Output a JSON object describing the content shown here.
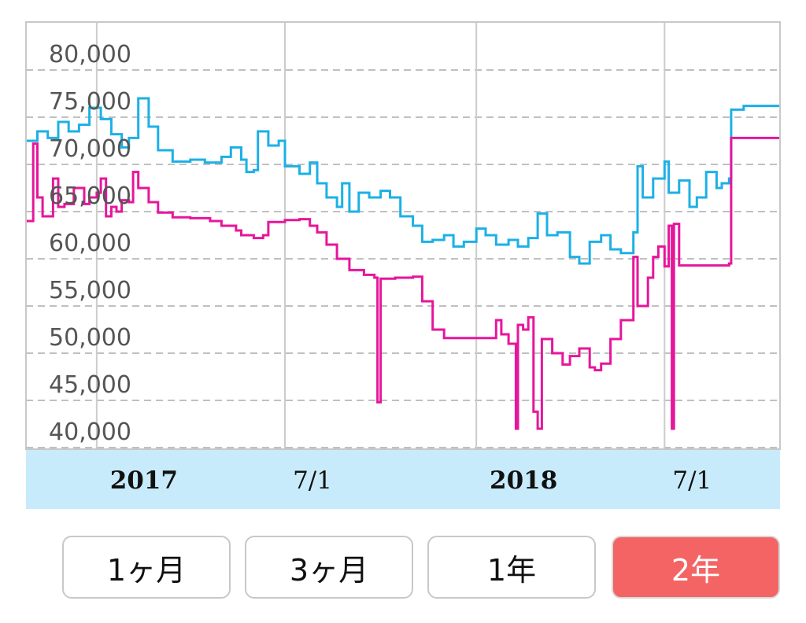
{
  "chart_data": {
    "type": "line",
    "ylim": [
      38000,
      83000
    ],
    "y_ticks": [
      "80,000",
      "75,000",
      "70,000",
      "65,000",
      "60,000",
      "55,000",
      "50,000",
      "45,000",
      "40,000"
    ],
    "x_ticks": [
      {
        "label": "2017",
        "at": "2017-01-01",
        "bold": true
      },
      {
        "label": "7/1",
        "at": "2017-07-01",
        "bold": false
      },
      {
        "label": "2018",
        "at": "2018-01-01",
        "bold": true
      },
      {
        "label": "7/1",
        "at": "2018-07-01",
        "bold": false
      }
    ],
    "xlim": [
      "2016-10-25",
      "2018-10-20"
    ],
    "grid": true,
    "series": [
      {
        "color": "#1cb0e6",
        "points": [
          [
            "2016-10-25",
            72500
          ],
          [
            "2016-11-05",
            73500
          ],
          [
            "2016-11-15",
            72800
          ],
          [
            "2016-11-25",
            74500
          ],
          [
            "2016-12-05",
            73500
          ],
          [
            "2016-12-15",
            74200
          ],
          [
            "2016-12-25",
            76000
          ],
          [
            "2017-01-05",
            74800
          ],
          [
            "2017-01-15",
            73200
          ],
          [
            "2017-01-25",
            71800
          ],
          [
            "2017-02-01",
            72800
          ],
          [
            "2017-02-10",
            77000
          ],
          [
            "2017-02-20",
            74000
          ],
          [
            "2017-03-01",
            71500
          ],
          [
            "2017-03-15",
            70300
          ],
          [
            "2017-04-01",
            70500
          ],
          [
            "2017-04-15",
            70200
          ],
          [
            "2017-05-01",
            70800
          ],
          [
            "2017-05-10",
            71800
          ],
          [
            "2017-05-20",
            70500
          ],
          [
            "2017-05-25",
            69200
          ],
          [
            "2017-06-01",
            69400
          ],
          [
            "2017-06-05",
            73500
          ],
          [
            "2017-06-15",
            72000
          ],
          [
            "2017-06-25",
            72500
          ],
          [
            "2017-07-01",
            69800
          ],
          [
            "2017-07-15",
            69000
          ],
          [
            "2017-07-25",
            70200
          ],
          [
            "2017-08-01",
            68000
          ],
          [
            "2017-08-10",
            66500
          ],
          [
            "2017-08-20",
            65500
          ],
          [
            "2017-08-25",
            68000
          ],
          [
            "2017-09-01",
            65000
          ],
          [
            "2017-09-10",
            67000
          ],
          [
            "2017-09-20",
            66500
          ],
          [
            "2017-10-01",
            67200
          ],
          [
            "2017-10-10",
            66500
          ],
          [
            "2017-10-20",
            64500
          ],
          [
            "2017-11-01",
            63500
          ],
          [
            "2017-11-10",
            61800
          ],
          [
            "2017-11-20",
            62000
          ],
          [
            "2017-12-01",
            62500
          ],
          [
            "2017-12-10",
            61300
          ],
          [
            "2017-12-20",
            61800
          ],
          [
            "2018-01-01",
            63200
          ],
          [
            "2018-01-10",
            62500
          ],
          [
            "2018-01-20",
            61500
          ],
          [
            "2018-02-01",
            62000
          ],
          [
            "2018-02-10",
            61300
          ],
          [
            "2018-02-20",
            62200
          ],
          [
            "2018-03-01",
            64800
          ],
          [
            "2018-03-10",
            62500
          ],
          [
            "2018-03-20",
            62800
          ],
          [
            "2018-04-01",
            60200
          ],
          [
            "2018-04-10",
            59500
          ],
          [
            "2018-04-20",
            61800
          ],
          [
            "2018-05-01",
            62500
          ],
          [
            "2018-05-10",
            61000
          ],
          [
            "2018-05-20",
            60600
          ],
          [
            "2018-06-01",
            62800
          ],
          [
            "2018-06-05",
            69800
          ],
          [
            "2018-06-10",
            66500
          ],
          [
            "2018-06-20",
            68500
          ],
          [
            "2018-07-01",
            70300
          ],
          [
            "2018-07-05",
            67000
          ],
          [
            "2018-07-15",
            68300
          ],
          [
            "2018-07-25",
            65500
          ],
          [
            "2018-08-01",
            66500
          ],
          [
            "2018-08-10",
            69200
          ],
          [
            "2018-08-20",
            67500
          ],
          [
            "2018-08-25",
            68000
          ],
          [
            "2018-09-01",
            68500
          ],
          [
            "2018-09-03",
            75800
          ],
          [
            "2018-09-15",
            76200
          ],
          [
            "2018-10-20",
            76200
          ]
        ]
      },
      {
        "color": "#e6169b",
        "points": [
          [
            "2016-10-25",
            64000
          ],
          [
            "2016-11-01",
            72200
          ],
          [
            "2016-11-05",
            66500
          ],
          [
            "2016-11-10",
            64500
          ],
          [
            "2016-11-20",
            68500
          ],
          [
            "2016-11-25",
            65500
          ],
          [
            "2016-12-01",
            65800
          ],
          [
            "2016-12-10",
            67500
          ],
          [
            "2016-12-20",
            65800
          ],
          [
            "2016-12-25",
            66500
          ],
          [
            "2017-01-01",
            67000
          ],
          [
            "2017-01-05",
            68500
          ],
          [
            "2017-01-10",
            64500
          ],
          [
            "2017-01-15",
            65500
          ],
          [
            "2017-01-20",
            65000
          ],
          [
            "2017-01-25",
            66200
          ],
          [
            "2017-02-01",
            66000
          ],
          [
            "2017-02-05",
            69200
          ],
          [
            "2017-02-10",
            67500
          ],
          [
            "2017-02-20",
            66000
          ],
          [
            "2017-03-01",
            64900
          ],
          [
            "2017-03-15",
            64400
          ],
          [
            "2017-04-01",
            64300
          ],
          [
            "2017-04-20",
            64000
          ],
          [
            "2017-05-01",
            63500
          ],
          [
            "2017-05-15",
            63000
          ],
          [
            "2017-05-20",
            62500
          ],
          [
            "2017-06-01",
            62200
          ],
          [
            "2017-06-10",
            62500
          ],
          [
            "2017-06-15",
            63900
          ],
          [
            "2017-07-01",
            64100
          ],
          [
            "2017-07-15",
            64200
          ],
          [
            "2017-07-25",
            63500
          ],
          [
            "2017-08-01",
            62800
          ],
          [
            "2017-08-10",
            61500
          ],
          [
            "2017-08-20",
            60000
          ],
          [
            "2017-09-01",
            58800
          ],
          [
            "2017-09-15",
            58300
          ],
          [
            "2017-09-25",
            58000
          ],
          [
            "2017-09-28",
            44800
          ],
          [
            "2017-10-01",
            57900
          ],
          [
            "2017-10-15",
            58000
          ],
          [
            "2017-11-01",
            58100
          ],
          [
            "2017-11-10",
            55500
          ],
          [
            "2017-11-20",
            52500
          ],
          [
            "2017-12-01",
            51600
          ],
          [
            "2018-01-01",
            51600
          ],
          [
            "2018-01-15",
            51600
          ],
          [
            "2018-01-20",
            53500
          ],
          [
            "2018-01-25",
            52000
          ],
          [
            "2018-02-01",
            51000
          ],
          [
            "2018-02-08",
            42000
          ],
          [
            "2018-02-10",
            53000
          ],
          [
            "2018-02-15",
            52500
          ],
          [
            "2018-02-20",
            53800
          ],
          [
            "2018-02-25",
            43800
          ],
          [
            "2018-03-01",
            42000
          ],
          [
            "2018-03-05",
            51500
          ],
          [
            "2018-03-15",
            50000
          ],
          [
            "2018-03-25",
            48800
          ],
          [
            "2018-04-01",
            49700
          ],
          [
            "2018-04-10",
            50500
          ],
          [
            "2018-04-20",
            48500
          ],
          [
            "2018-04-25",
            48200
          ],
          [
            "2018-05-01",
            48900
          ],
          [
            "2018-05-10",
            51500
          ],
          [
            "2018-05-20",
            53500
          ],
          [
            "2018-06-01",
            60200
          ],
          [
            "2018-06-05",
            55000
          ],
          [
            "2018-06-15",
            58000
          ],
          [
            "2018-06-20",
            60200
          ],
          [
            "2018-06-25",
            61300
          ],
          [
            "2018-07-01",
            59200
          ],
          [
            "2018-07-05",
            63500
          ],
          [
            "2018-07-08",
            42000
          ],
          [
            "2018-07-10",
            63700
          ],
          [
            "2018-07-15",
            59300
          ],
          [
            "2018-08-01",
            59300
          ],
          [
            "2018-08-20",
            59300
          ],
          [
            "2018-09-01",
            59500
          ],
          [
            "2018-09-03",
            72800
          ],
          [
            "2018-09-15",
            72800
          ],
          [
            "2018-10-20",
            72800
          ]
        ]
      }
    ]
  },
  "range_buttons": [
    {
      "label": "1ヶ月",
      "active": false
    },
    {
      "label": "3ヶ月",
      "active": false
    },
    {
      "label": "1年",
      "active": false
    },
    {
      "label": "2年",
      "active": true
    }
  ],
  "colors": {
    "axis_band": "#c8ebfb",
    "grid": "#c0c0c0",
    "active_button": "#f46464"
  }
}
